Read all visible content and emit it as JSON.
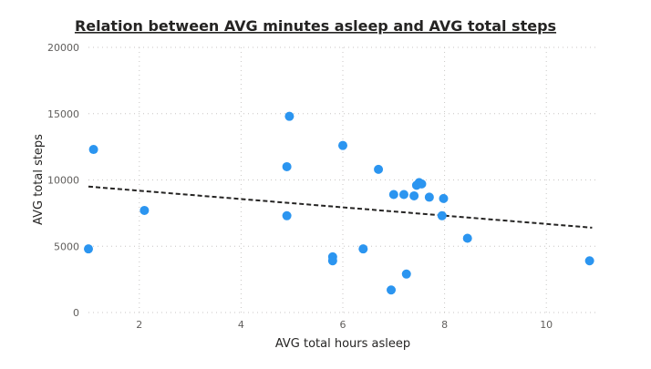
{
  "chart_data": {
    "type": "scatter",
    "title": "Relation between AVG minutes asleep and AVG total steps",
    "xlabel": "AVG total hours asleep",
    "ylabel": "AVG total steps",
    "xlim": [
      1,
      11
    ],
    "ylim": [
      0,
      20000
    ],
    "x_ticks": [
      2,
      4,
      6,
      8,
      10
    ],
    "y_ticks": [
      0,
      5000,
      10000,
      15000,
      20000
    ],
    "x_tick_labels": [
      "2",
      "4",
      "6",
      "8",
      "10"
    ],
    "y_tick_labels": [
      "0",
      "5000",
      "10000",
      "15000",
      "20000"
    ],
    "grid": true,
    "legend": "none",
    "colors": {
      "points": "#2b95f0",
      "trend": "#252423",
      "grid": "#c8c6c4"
    },
    "trendline": {
      "x": [
        1,
        10.9
      ],
      "y": [
        9500,
        6400
      ]
    },
    "series": [
      {
        "x": [
          1.0,
          1.1,
          2.1,
          4.9,
          4.9,
          4.95,
          5.8,
          5.8,
          6.0,
          6.4,
          6.7,
          6.95,
          7.0,
          7.2,
          7.25,
          7.4,
          7.45,
          7.5,
          7.55,
          7.7,
          7.95,
          7.98,
          8.45,
          10.85
        ],
        "y": [
          4800,
          12300,
          7700,
          11000,
          7300,
          14800,
          4200,
          3900,
          12600,
          4800,
          10800,
          1700,
          8900,
          8900,
          2900,
          8800,
          9600,
          9800,
          9700,
          8700,
          7300,
          8600,
          5600,
          3900
        ]
      }
    ]
  }
}
